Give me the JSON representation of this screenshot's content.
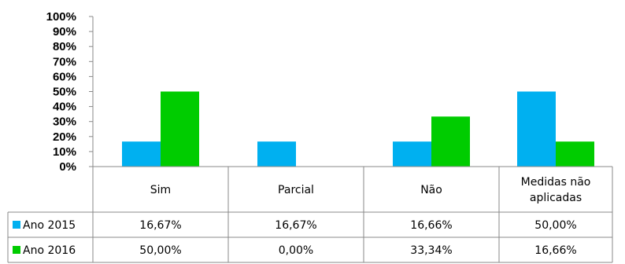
{
  "chart_data": {
    "type": "bar",
    "title": "",
    "xlabel": "",
    "ylabel": "",
    "categories": [
      "Sim",
      "Parcial",
      "Não",
      [
        "Medidas não",
        "aplicadas"
      ]
    ],
    "series": [
      {
        "name": "Ano 2015",
        "color": "#00b0f0",
        "values": [
          16.67,
          16.67,
          16.66,
          50.0
        ],
        "labels": [
          "16,67%",
          "16,67%",
          "16,66%",
          "50,00%"
        ]
      },
      {
        "name": "Ano 2016",
        "color": "#00cc00",
        "values": [
          50.0,
          0.0,
          33.34,
          16.66
        ],
        "labels": [
          "50,00%",
          "0,00%",
          "33,34%",
          "16,66%"
        ]
      }
    ],
    "ylim": [
      0,
      100
    ],
    "yticks": [
      "0%",
      "10%",
      "20%",
      "30%",
      "40%",
      "50%",
      "60%",
      "70%",
      "80%",
      "90%",
      "100%"
    ],
    "grid": false,
    "legend": "data-table"
  }
}
